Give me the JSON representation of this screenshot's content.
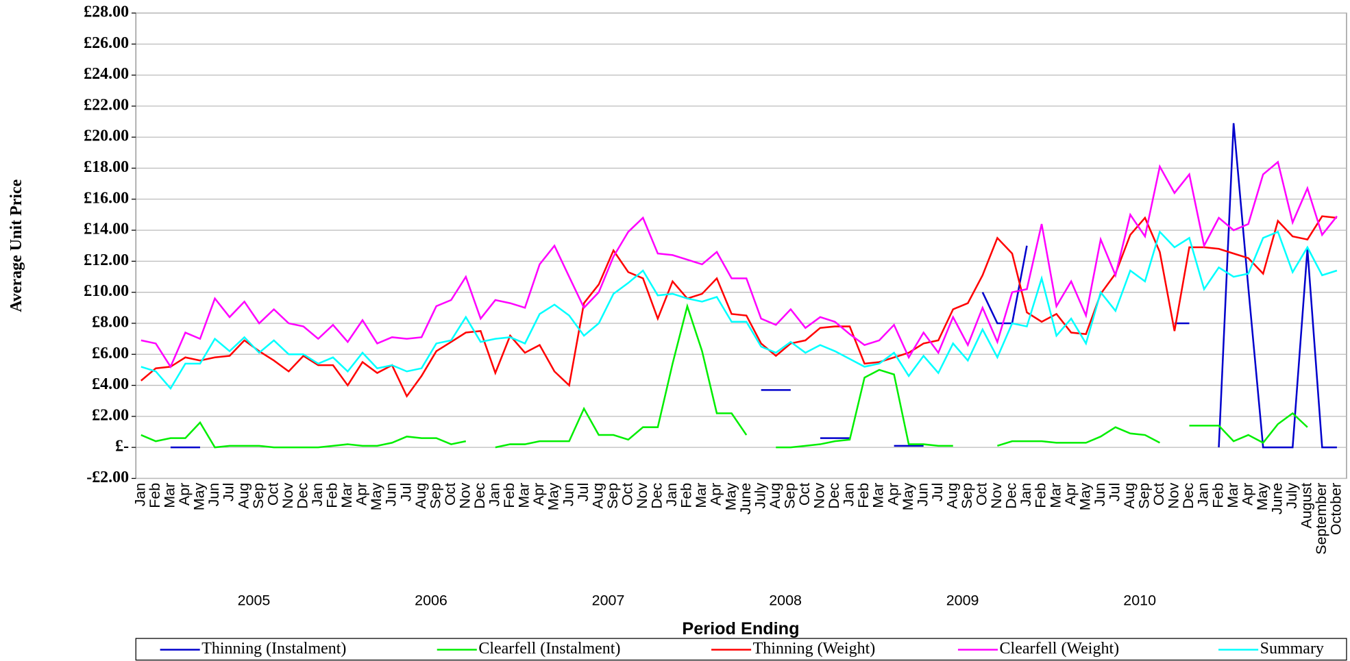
{
  "chart_data": {
    "type": "line",
    "y_label": "Average Unit Price",
    "x_label": "Period Ending",
    "categories": [
      "Jan",
      "Feb",
      "Mar",
      "Apr",
      "May",
      "Jun",
      "Jul",
      "Aug",
      "Sep",
      "Oct",
      "Nov",
      "Dec",
      "Jan",
      "Feb",
      "Mar",
      "Apr",
      "May",
      "Jun",
      "Jul",
      "Aug",
      "Sep",
      "Oct",
      "Nov",
      "Dec",
      "Jan",
      "Feb",
      "Mar",
      "Apr",
      "May",
      "Jun",
      "Jul",
      "Aug",
      "Sep",
      "Oct",
      "Nov",
      "Dec",
      "Jan",
      "Feb",
      "Mar",
      "Apr",
      "May",
      "June",
      "July",
      "Aug",
      "Sep",
      "Oct",
      "Nov",
      "Dec",
      "Jan",
      "Feb",
      "Mar",
      "Apr",
      "May",
      "Jun",
      "Jul",
      "Aug",
      "Sep",
      "Oct",
      "Nov",
      "Dec",
      "Jan",
      "Feb",
      "Mar",
      "Apr",
      "May",
      "Jun",
      "Jul",
      "Aug",
      "Sep",
      "Oct",
      "Nov",
      "Dec",
      "Jan",
      "Feb",
      "Mar",
      "Apr",
      "May",
      "June",
      "July",
      "August",
      "September",
      "October"
    ],
    "years": [
      "2005",
      "2006",
      "2007",
      "2008",
      "2009",
      "2010"
    ],
    "ylim": [
      -2,
      28
    ],
    "yticks": [
      {
        "value": -2,
        "label": "-£2.00"
      },
      {
        "value": 0,
        "label": "£-"
      },
      {
        "value": 2,
        "label": "£2.00"
      },
      {
        "value": 4,
        "label": "£4.00"
      },
      {
        "value": 6,
        "label": "£6.00"
      },
      {
        "value": 8,
        "label": "£8.00"
      },
      {
        "value": 10,
        "label": "£10.00"
      },
      {
        "value": 12,
        "label": "£12.00"
      },
      {
        "value": 14,
        "label": "£14.00"
      },
      {
        "value": 16,
        "label": "£16.00"
      },
      {
        "value": 18,
        "label": "£18.00"
      },
      {
        "value": 20,
        "label": "£20.00"
      },
      {
        "value": 22,
        "label": "£22.00"
      },
      {
        "value": 24,
        "label": "£24.00"
      },
      {
        "value": 26,
        "label": "£26.00"
      },
      {
        "value": 28,
        "label": "£28.00"
      }
    ],
    "grid": true,
    "legend": "bottom",
    "series": [
      {
        "name": "Thinning (Instalment)",
        "color": "#0000cc",
        "values": [
          null,
          null,
          0,
          0,
          0,
          null,
          null,
          null,
          null,
          null,
          null,
          null,
          null,
          null,
          null,
          null,
          null,
          null,
          null,
          null,
          null,
          null,
          null,
          null,
          null,
          null,
          null,
          null,
          null,
          null,
          null,
          null,
          null,
          null,
          null,
          null,
          null,
          null,
          null,
          null,
          null,
          null,
          3.7,
          3.7,
          3.7,
          null,
          0.6,
          0.6,
          0.6,
          null,
          null,
          0.1,
          0.1,
          0.1,
          null,
          null,
          null,
          10.0,
          8.0,
          8.0,
          13.0,
          null,
          null,
          null,
          null,
          null,
          null,
          null,
          null,
          null,
          8.0,
          8.0,
          null,
          0,
          20.9,
          10.3,
          0,
          0,
          0,
          12.8,
          0,
          0
        ]
      },
      {
        "name": "Clearfell (Instalment)",
        "color": "#00ee00",
        "values": [
          0.8,
          0.4,
          0.6,
          0.6,
          1.6,
          0.0,
          0.1,
          0.1,
          0.1,
          0.0,
          0.0,
          0.0,
          0.0,
          0.1,
          0.2,
          0.1,
          0.1,
          0.3,
          0.7,
          0.6,
          0.6,
          0.2,
          0.4,
          null,
          0.0,
          0.2,
          0.2,
          0.4,
          0.4,
          0.4,
          2.5,
          0.8,
          0.8,
          0.5,
          1.3,
          1.3,
          5.4,
          9.1,
          6.2,
          2.2,
          2.2,
          0.8,
          null,
          0.0,
          0.0,
          0.1,
          0.2,
          0.4,
          0.5,
          4.5,
          5.0,
          4.7,
          0.2,
          0.2,
          0.1,
          0.1,
          null,
          null,
          0.1,
          0.4,
          0.4,
          0.4,
          0.3,
          0.3,
          0.3,
          0.7,
          1.3,
          0.9,
          0.8,
          0.3,
          null,
          1.4,
          1.4,
          1.4,
          0.4,
          0.8,
          0.3,
          1.5,
          2.2,
          1.3,
          null,
          null
        ]
      },
      {
        "name": "Thinning (Weight)",
        "color": "#ff0000",
        "values": [
          4.3,
          5.1,
          5.2,
          5.8,
          5.6,
          5.8,
          5.9,
          6.9,
          6.2,
          5.6,
          4.9,
          5.9,
          5.3,
          5.3,
          4.0,
          5.5,
          4.8,
          5.3,
          3.3,
          4.6,
          6.2,
          6.8,
          7.4,
          7.5,
          4.8,
          7.2,
          6.1,
          6.6,
          4.9,
          4.0,
          9.3,
          10.5,
          12.7,
          11.3,
          10.9,
          8.3,
          10.7,
          9.6,
          9.9,
          10.9,
          8.6,
          8.5,
          6.7,
          5.9,
          6.7,
          6.9,
          7.7,
          7.8,
          7.8,
          5.4,
          5.5,
          5.8,
          6.1,
          6.7,
          6.9,
          8.9,
          9.3,
          11.1,
          13.5,
          12.5,
          8.7,
          8.1,
          8.6,
          7.4,
          7.3,
          9.9,
          11.2,
          13.7,
          14.8,
          12.6,
          7.5,
          12.9,
          12.9,
          12.8,
          12.5,
          12.2,
          11.2,
          14.6,
          13.6,
          13.4,
          14.9,
          14.8
        ]
      },
      {
        "name": "Clearfell (Weight)",
        "color": "#ff00ff",
        "values": [
          6.9,
          6.7,
          5.2,
          7.4,
          7.0,
          9.6,
          8.4,
          9.4,
          8.0,
          8.9,
          8.0,
          7.8,
          7.0,
          7.9,
          6.8,
          8.2,
          6.7,
          7.1,
          7.0,
          7.1,
          9.1,
          9.5,
          11.0,
          8.3,
          9.5,
          9.3,
          9.0,
          11.8,
          13.0,
          11.0,
          9.0,
          10.0,
          12.3,
          13.9,
          14.8,
          12.5,
          12.4,
          12.1,
          11.8,
          12.6,
          10.9,
          10.9,
          8.3,
          7.9,
          8.9,
          7.7,
          8.4,
          8.1,
          7.3,
          6.6,
          6.9,
          7.9,
          5.8,
          7.4,
          6.1,
          8.4,
          6.6,
          9.0,
          6.8,
          10.0,
          10.2,
          14.4,
          9.1,
          10.7,
          8.5,
          13.4,
          11.1,
          15.0,
          13.6,
          18.1,
          16.4,
          17.6,
          13.0,
          14.8,
          14.0,
          14.4,
          17.6,
          18.4,
          14.5,
          16.7,
          13.7,
          14.9
        ]
      },
      {
        "name": "Summary",
        "color": "#00ffff",
        "values": [
          5.2,
          4.9,
          3.8,
          5.4,
          5.4,
          7.0,
          6.2,
          7.1,
          6.1,
          6.9,
          6.0,
          6.0,
          5.4,
          5.8,
          4.9,
          6.1,
          5.1,
          5.3,
          4.9,
          5.1,
          6.7,
          6.9,
          8.4,
          6.8,
          7.0,
          7.1,
          6.7,
          8.6,
          9.2,
          8.5,
          7.2,
          8.0,
          9.9,
          10.6,
          11.4,
          9.8,
          9.9,
          9.6,
          9.4,
          9.7,
          8.1,
          8.1,
          6.5,
          6.1,
          6.8,
          6.1,
          6.6,
          6.2,
          5.7,
          5.2,
          5.4,
          6.1,
          4.6,
          5.9,
          4.8,
          6.7,
          5.6,
          7.6,
          5.8,
          8.0,
          7.8,
          10.9,
          7.2,
          8.3,
          6.7,
          10.0,
          8.8,
          11.4,
          10.7,
          13.9,
          12.9,
          13.5,
          10.2,
          11.6,
          11.0,
          11.2,
          13.5,
          13.9,
          11.3,
          12.9,
          11.1,
          11.4
        ]
      }
    ]
  }
}
